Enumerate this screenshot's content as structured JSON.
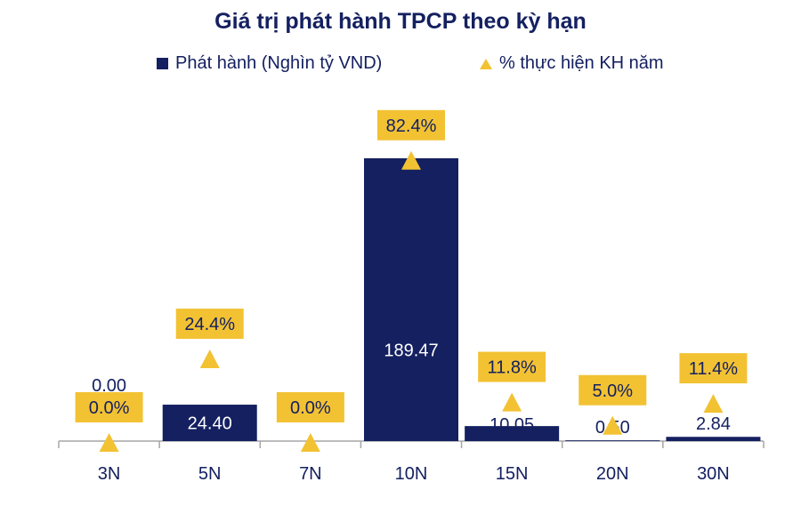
{
  "chart_data": {
    "type": "bar",
    "title": "Giá trị phát hành TPCP theo kỳ hạn",
    "categories": [
      "3N",
      "5N",
      "7N",
      "10N",
      "15N",
      "20N",
      "30N"
    ],
    "series": [
      {
        "name": "Phát hành (Nghìn tỷ VND)",
        "type": "bar",
        "values": [
          0.0,
          24.4,
          0.0,
          189.47,
          10.05,
          0.5,
          2.84
        ],
        "labels": [
          "0.00",
          "24.40",
          "",
          "189.47",
          "10.05",
          "0.50",
          "2.84"
        ]
      },
      {
        "name": "% thực hiện KH năm",
        "type": "scatter",
        "marker": "triangle",
        "values": [
          0.0,
          24.4,
          0.0,
          82.4,
          11.8,
          5.0,
          11.4
        ],
        "labels": [
          "0.0%",
          "24.4%",
          "0.0%",
          "82.4%",
          "11.8%",
          "5.0%",
          "11.4%"
        ]
      }
    ],
    "legend": "top",
    "grid": false,
    "colors": {
      "bar": "#142060",
      "marker": "#f2c233",
      "label_box": "#f2c233",
      "axis": "#a6a6a6"
    }
  }
}
